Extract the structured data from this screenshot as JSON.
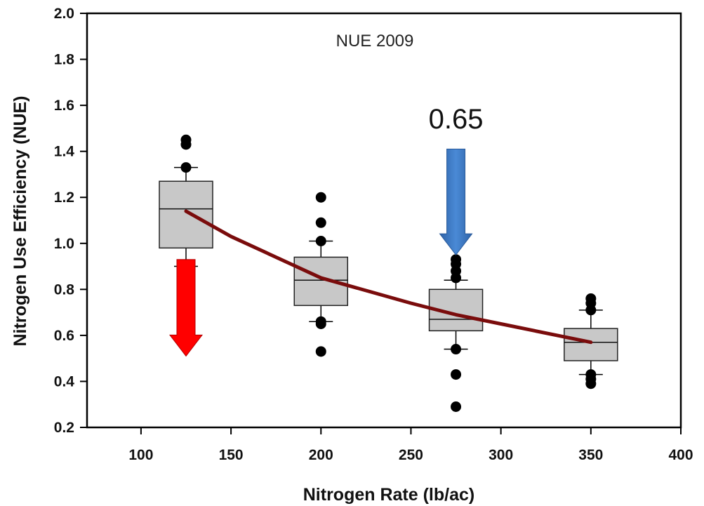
{
  "chart_data": {
    "type": "box",
    "title": "NUE 2009",
    "xlabel": "Nitrogen Rate (lb/ac)",
    "ylabel": "Nitrogen Use Efficiency (NUE)",
    "xlim": [
      70,
      400
    ],
    "ylim": [
      0.2,
      2.0
    ],
    "xticks": [
      100,
      150,
      200,
      250,
      300,
      350,
      400
    ],
    "yticks": [
      "0.2",
      "0.4",
      "0.6",
      "0.8",
      "1.0",
      "1.2",
      "1.4",
      "1.6",
      "1.8",
      "2.0"
    ],
    "boxes": [
      {
        "x": 125,
        "whisker_low": 0.9,
        "q1": 0.98,
        "median": 1.15,
        "q3": 1.27,
        "whisker_high": 1.33,
        "outliers": [
          1.33,
          1.43,
          1.45
        ]
      },
      {
        "x": 200,
        "whisker_low": 0.66,
        "q1": 0.73,
        "median": 0.84,
        "q3": 0.94,
        "whisker_high": 1.01,
        "outliers": [
          0.53,
          0.65,
          0.66,
          1.01,
          1.09,
          1.2
        ]
      },
      {
        "x": 275,
        "whisker_low": 0.54,
        "q1": 0.62,
        "median": 0.67,
        "q3": 0.8,
        "whisker_high": 0.84,
        "outliers": [
          0.29,
          0.43,
          0.54,
          0.85,
          0.88,
          0.91,
          0.93
        ]
      },
      {
        "x": 350,
        "whisker_low": 0.43,
        "q1": 0.49,
        "median": 0.57,
        "q3": 0.63,
        "whisker_high": 0.71,
        "outliers": [
          0.39,
          0.41,
          0.43,
          0.71,
          0.74,
          0.76
        ]
      }
    ],
    "trend_line": {
      "x": [
        125,
        150,
        200,
        250,
        275,
        300,
        350
      ],
      "y": [
        1.14,
        1.03,
        0.85,
        0.74,
        0.69,
        0.65,
        0.57
      ]
    },
    "annotations": [
      {
        "text": "0.65",
        "x": 275,
        "y": 1.5
      }
    ],
    "arrows": [
      {
        "x": 125,
        "y_from": 0.93,
        "y_to": 0.51,
        "color": "#ff0000"
      },
      {
        "x": 275,
        "y_from": 1.41,
        "y_to": 0.95,
        "color": "#3b78c4"
      }
    ],
    "colors": {
      "box_fill": "#c8c8c8",
      "trend": "#7a0c0c",
      "points": "#000000"
    },
    "grid": false,
    "legend": "none"
  }
}
